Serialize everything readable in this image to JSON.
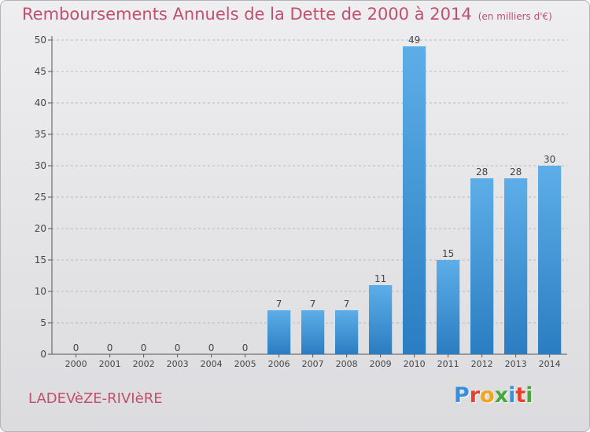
{
  "header": {
    "title": "Remboursements Annuels de la Dette de 2000 à 2014",
    "unit": "(en milliers d'€)"
  },
  "footer": {
    "commune": "LADEVèZE-RIVIèRE",
    "logo": "Proxiti",
    "logo_colors": [
      "#3a8fd8",
      "#e8402a",
      "#f2a51a",
      "#46a83a",
      "#3a8fd8",
      "#e8402a",
      "#46a83a"
    ]
  },
  "colors": {
    "bar_top": "#5daee8",
    "bar_bottom": "#2a7dc1",
    "title": "#c0506e",
    "grid": "#b8b8b8"
  },
  "chart_data": {
    "type": "bar",
    "title": "Remboursements Annuels de la Dette de 2000 à 2014",
    "subtitle": "(en milliers d'€)",
    "xlabel": "",
    "ylabel": "",
    "categories": [
      "2000",
      "2001",
      "2002",
      "2003",
      "2004",
      "2005",
      "2006",
      "2007",
      "2008",
      "2009",
      "2010",
      "2011",
      "2012",
      "2013",
      "2014"
    ],
    "values": [
      0,
      0,
      0,
      0,
      0,
      0,
      7,
      7,
      7,
      11,
      49,
      15,
      28,
      28,
      30
    ],
    "ylim": [
      0,
      50
    ],
    "yticks": [
      0,
      5,
      10,
      15,
      20,
      25,
      30,
      35,
      40,
      45,
      50
    ],
    "grid": "horizontal"
  }
}
